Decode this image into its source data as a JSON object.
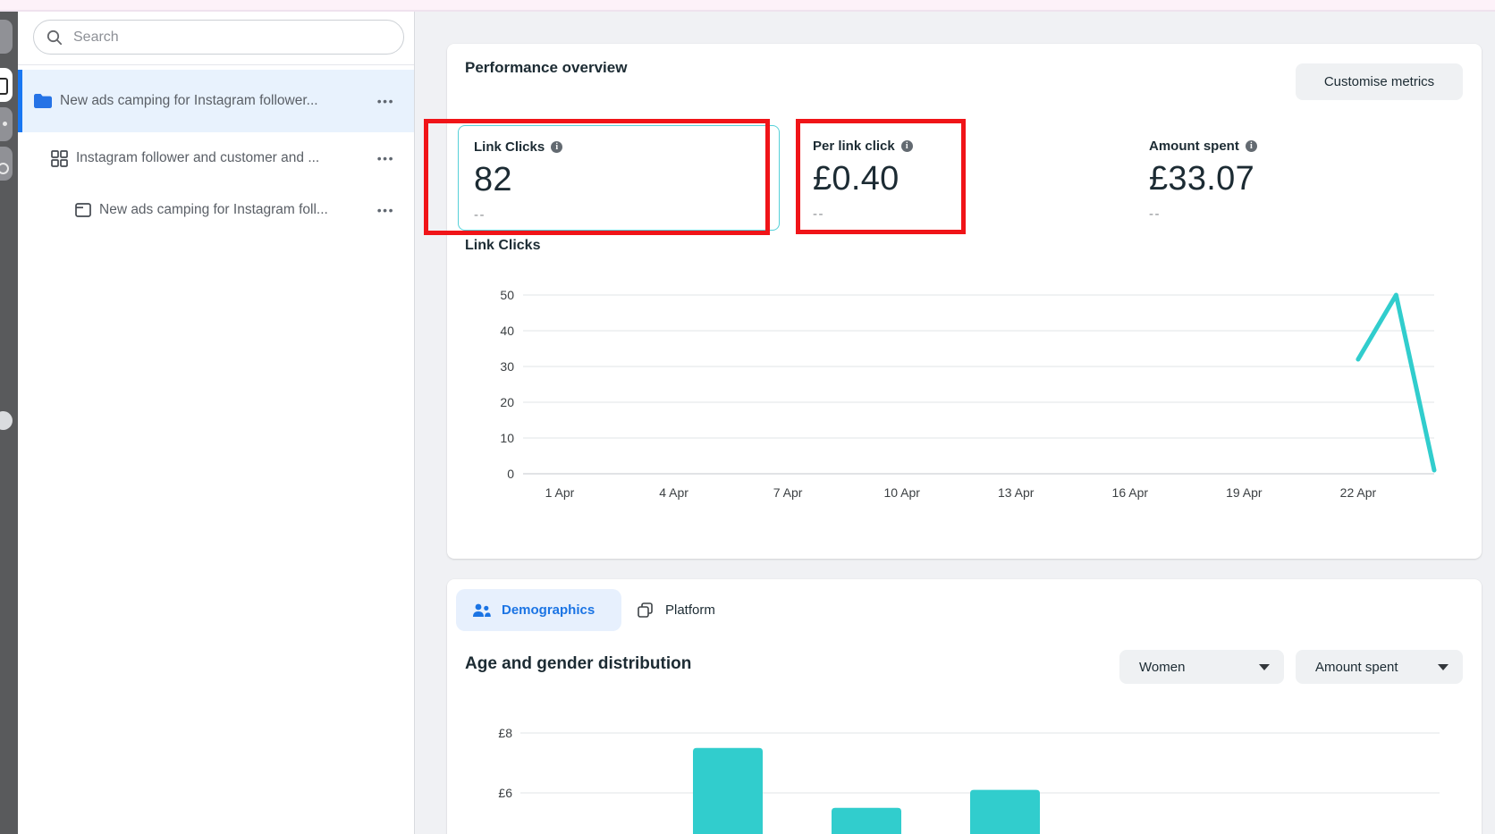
{
  "colors": {
    "accent_teal": "#31cdcd",
    "annotation_red": "#f01418",
    "link_blue": "#1b74e4",
    "active_tab_bg": "#e7f0fd",
    "selected_row_bg": "#e8f2fd",
    "app_bg": "#f0f1f4",
    "topbar_pink": "#fdf2f9"
  },
  "sidebar": {
    "search": {
      "placeholder": "Search"
    },
    "items": [
      {
        "label": "New ads camping for Instagram follower...",
        "icon": "folder-icon",
        "level": "campaign",
        "selected": true
      },
      {
        "label": "Instagram follower and customer and ...",
        "icon": "ad-set-icon",
        "level": "ad-set",
        "selected": false
      },
      {
        "label": "New ads camping for Instagram foll...",
        "icon": "ad-icon",
        "level": "ad",
        "selected": false
      }
    ]
  },
  "performance": {
    "title": "Performance overview",
    "customise_button": "Customise metrics",
    "metrics": [
      {
        "label": "Link Clicks",
        "value": "82",
        "secondary": "--",
        "selected": true
      },
      {
        "label": "Per link click",
        "value": "£0.40",
        "secondary": "--",
        "selected": false
      },
      {
        "label": "Amount spent",
        "value": "£33.07",
        "secondary": "--",
        "selected": false
      }
    ]
  },
  "demographics": {
    "tabs": [
      {
        "label": "Demographics",
        "active": true
      },
      {
        "label": "Platform",
        "active": false
      }
    ],
    "heading": "Age and gender distribution",
    "filters": {
      "gender": "Women",
      "metric": "Amount spent"
    }
  },
  "chart_data": [
    {
      "id": "link-clicks-trend",
      "type": "line",
      "title": "Link Clicks",
      "xlabel": "",
      "ylabel": "",
      "ylim": [
        0,
        50
      ],
      "grid": true,
      "legend": "none",
      "yticks": [
        0,
        10,
        20,
        30,
        40,
        50
      ],
      "xticks": [
        {
          "day": 1,
          "label": "1 Apr"
        },
        {
          "day": 4,
          "label": "4 Apr"
        },
        {
          "day": 7,
          "label": "7 Apr"
        },
        {
          "day": 10,
          "label": "10 Apr"
        },
        {
          "day": 13,
          "label": "13 Apr"
        },
        {
          "day": 16,
          "label": "16 Apr"
        },
        {
          "day": 19,
          "label": "19 Apr"
        },
        {
          "day": 22,
          "label": "22 Apr"
        }
      ],
      "series": [
        {
          "name": "Link Clicks",
          "color": "#31cdcd",
          "points": [
            {
              "day": 22,
              "label": "22 Apr",
              "value": 32
            },
            {
              "day": 23,
              "label": "23 Apr",
              "value": 50
            },
            {
              "day": 24,
              "label": "24 Apr",
              "value": 1
            }
          ]
        }
      ]
    },
    {
      "id": "age-gender-distribution",
      "type": "bar",
      "title": "Age and gender distribution",
      "breakdown": "Women",
      "metric": "Amount spent",
      "currency": "£",
      "categories": [
        "",
        "",
        ""
      ],
      "values": [
        7.5,
        5.5,
        6.1
      ],
      "bar_color": "#31cdcd",
      "yticks": [
        {
          "label": "£8",
          "value": 8
        },
        {
          "label": "£6",
          "value": 6
        }
      ],
      "grid": true,
      "legend": "none"
    }
  ]
}
